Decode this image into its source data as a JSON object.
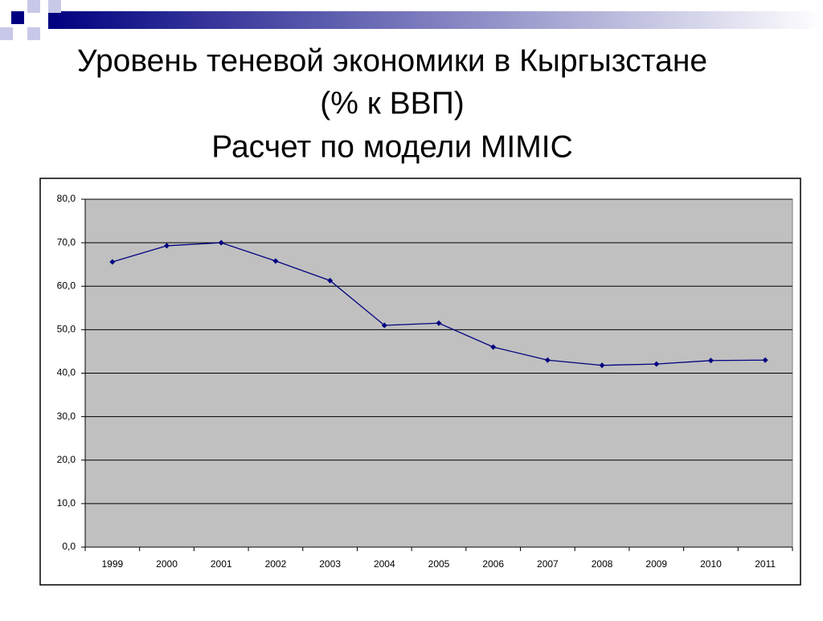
{
  "chart_data": {
    "type": "line",
    "title": "Уровень теневой экономики в Кыргызстане",
    "subtitle": [
      "(% к ВВП)",
      "Расчет по модели MIMIC"
    ],
    "categories": [
      "1999",
      "2000",
      "2001",
      "2002",
      "2003",
      "2004",
      "2005",
      "2006",
      "2007",
      "2008",
      "2009",
      "2010",
      "2011"
    ],
    "values": [
      65.6,
      69.3,
      70.0,
      65.8,
      61.3,
      51.0,
      51.5,
      46.0,
      43.0,
      41.8,
      42.1,
      42.9,
      43.0
    ],
    "color": "#000080",
    "ylim": [
      0,
      80
    ],
    "yticks": [
      {
        "value": 0,
        "label": "0,0"
      },
      {
        "value": 10,
        "label": "10,0"
      },
      {
        "value": 20,
        "label": "20,0"
      },
      {
        "value": 30,
        "label": "30,0"
      },
      {
        "value": 40,
        "label": "40,0"
      },
      {
        "value": 50,
        "label": "50,0"
      },
      {
        "value": 60,
        "label": "60,0"
      },
      {
        "value": 70,
        "label": "70,0"
      },
      {
        "value": 80,
        "label": "80,0"
      }
    ],
    "grid": true
  }
}
